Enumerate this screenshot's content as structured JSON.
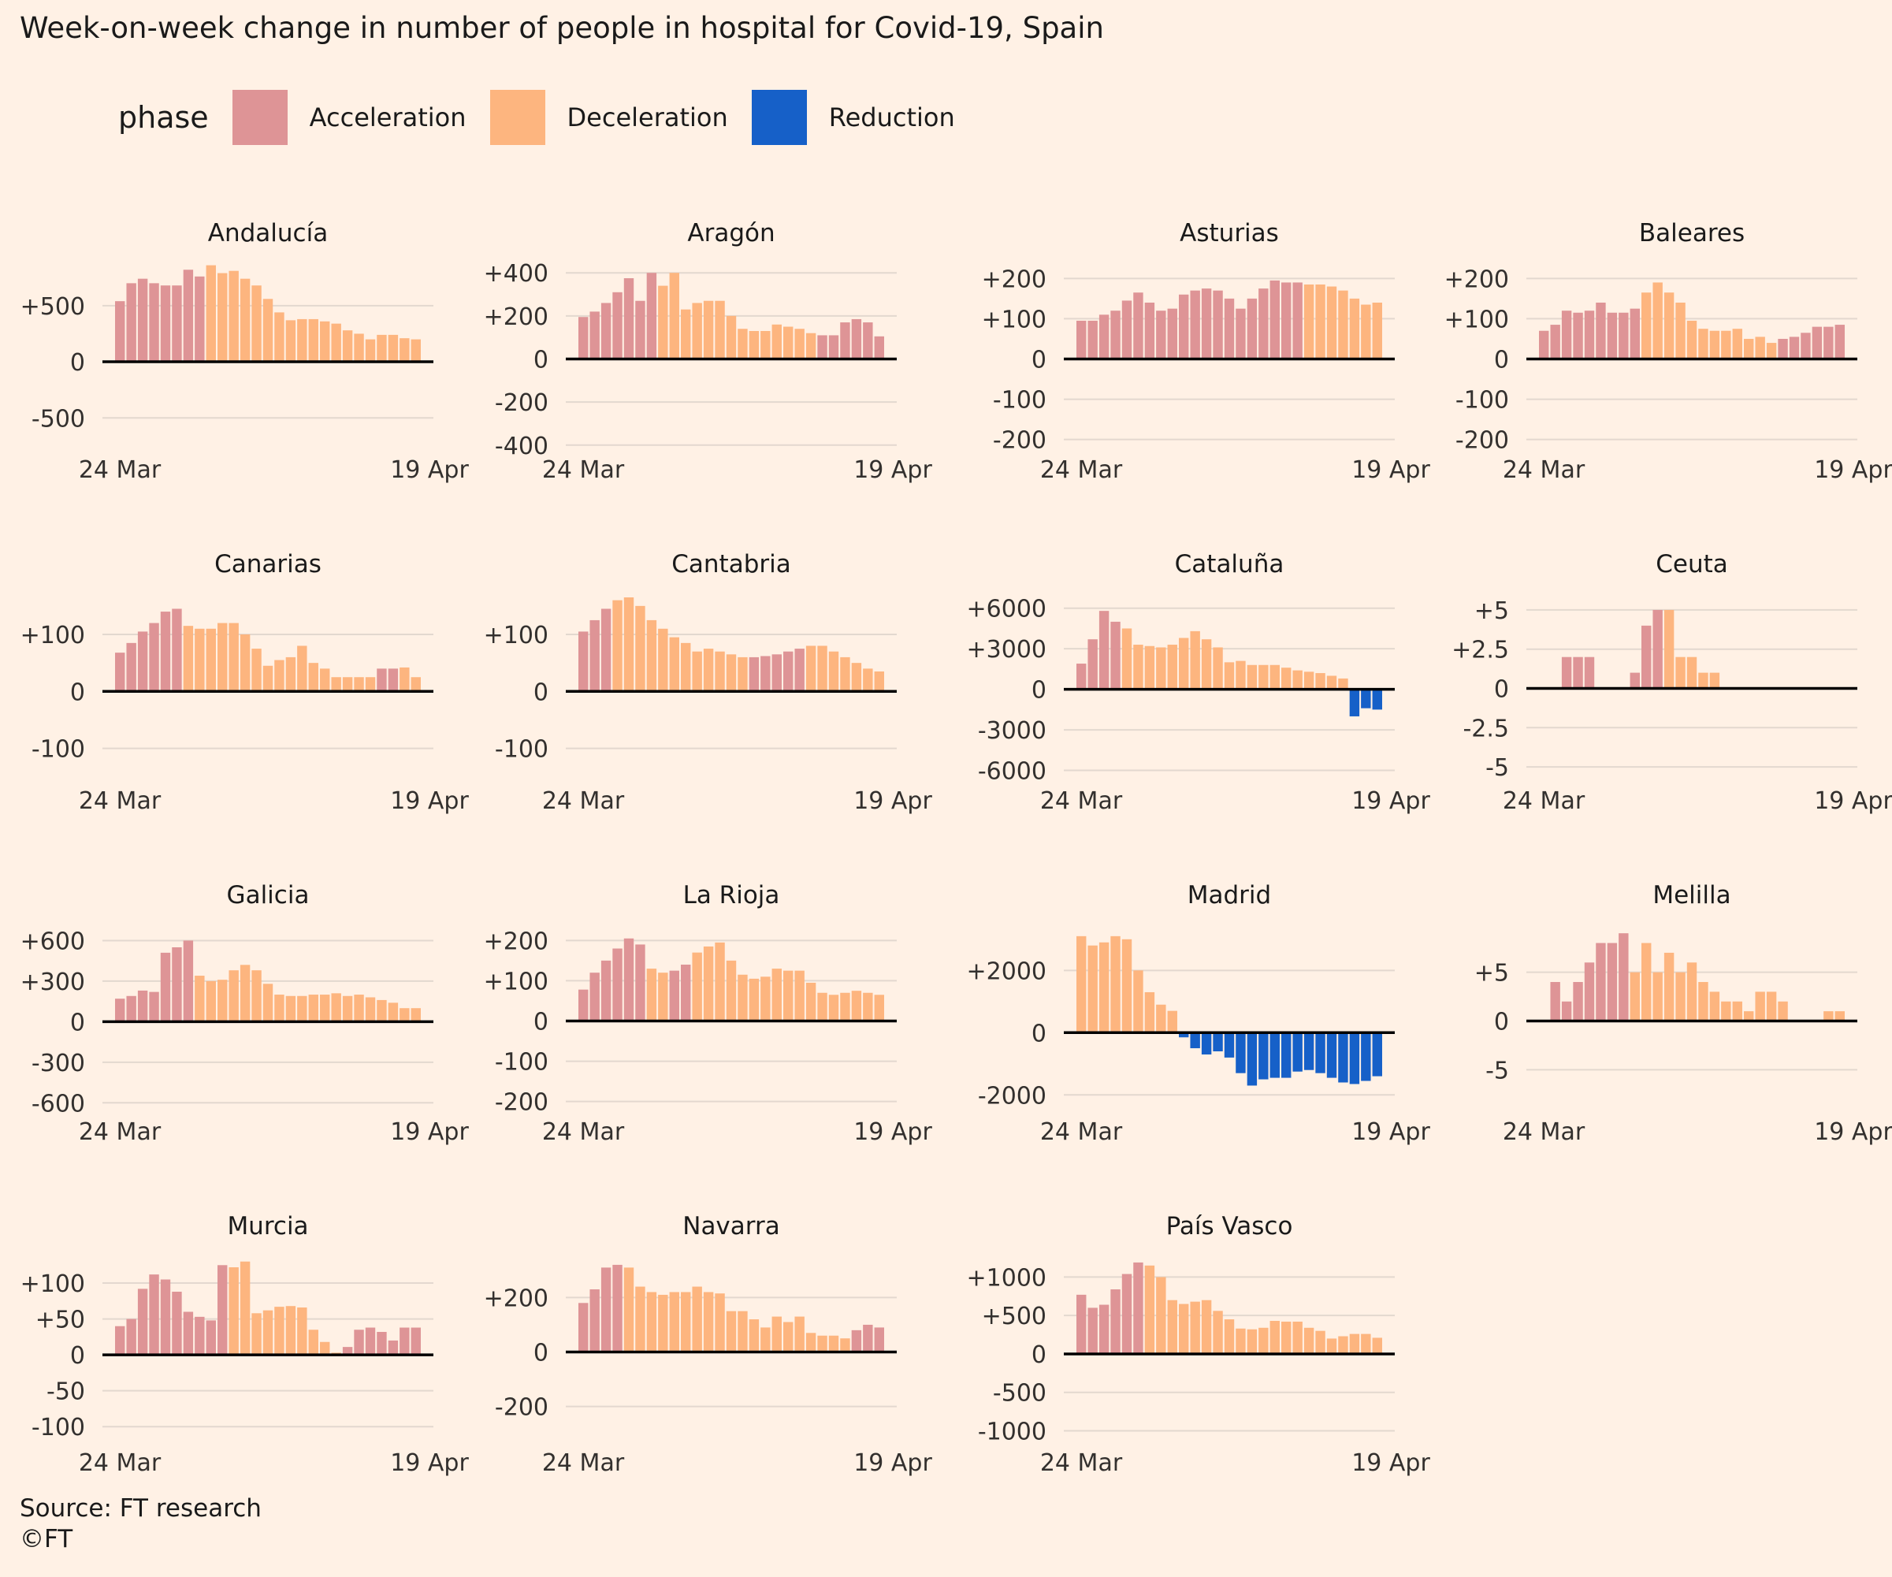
{
  "title": "Week-on-week change in number of people in hospital for Covid-19, Spain",
  "legend": {
    "title": "phase",
    "items": [
      {
        "label": "Acceleration",
        "color": "#de9496"
      },
      {
        "label": "Deceleration",
        "color": "#fdb57f"
      },
      {
        "label": "Reduction",
        "color": "#1660c8"
      }
    ]
  },
  "footer": {
    "source": "Source: FT research",
    "copyright": "©FT"
  },
  "chart_data": {
    "type": "bar",
    "x_range": [
      "24 Mar",
      "19 Apr"
    ],
    "x_tick_labels": [
      "24 Mar",
      "19 Apr"
    ],
    "grid": true,
    "legend_position": "top-left",
    "phase_codes": {
      "A": "Acceleration",
      "D": "Deceleration",
      "R": "Reduction"
    },
    "panels": [
      {
        "title": "Andalucía",
        "ylim": [
          -800,
          850
        ],
        "ticks": [
          -500,
          0,
          500
        ],
        "tick_labels": [
          "-500",
          "0",
          "+500"
        ],
        "values": [
          540,
          700,
          740,
          700,
          680,
          680,
          820,
          760,
          860,
          790,
          810,
          740,
          680,
          560,
          440,
          370,
          380,
          380,
          360,
          340,
          280,
          250,
          200,
          240,
          240,
          210,
          200
        ],
        "phases": [
          "A",
          "A",
          "A",
          "A",
          "A",
          "A",
          "A",
          "A",
          "D",
          "D",
          "D",
          "D",
          "D",
          "D",
          "D",
          "D",
          "D",
          "D",
          "D",
          "D",
          "D",
          "D",
          "D",
          "D",
          "D",
          "D",
          "D"
        ]
      },
      {
        "title": "Aragón",
        "ylim": [
          -430,
          430
        ],
        "ticks": [
          -400,
          -200,
          0,
          200,
          400
        ],
        "tick_labels": [
          "-400",
          "-200",
          "0",
          "+200",
          "+400"
        ],
        "values": [
          195,
          220,
          260,
          310,
          375,
          270,
          400,
          340,
          400,
          230,
          260,
          270,
          270,
          200,
          140,
          130,
          130,
          160,
          150,
          140,
          120,
          110,
          110,
          170,
          185,
          170,
          105
        ],
        "phases": [
          "A",
          "A",
          "A",
          "A",
          "A",
          "A",
          "A",
          "D",
          "D",
          "D",
          "D",
          "D",
          "D",
          "D",
          "D",
          "D",
          "D",
          "D",
          "D",
          "D",
          "D",
          "A",
          "A",
          "A",
          "A",
          "A",
          "A"
        ]
      },
      {
        "title": "Asturias",
        "ylim": [
          -230,
          230
        ],
        "ticks": [
          -200,
          -100,
          0,
          100,
          200
        ],
        "tick_labels": [
          "-200",
          "-100",
          "0",
          "+100",
          "+200"
        ],
        "values": [
          95,
          95,
          110,
          120,
          145,
          165,
          140,
          120,
          125,
          160,
          170,
          175,
          170,
          150,
          125,
          150,
          175,
          195,
          190,
          190,
          185,
          185,
          180,
          170,
          150,
          135,
          140
        ],
        "phases": [
          "A",
          "A",
          "A",
          "A",
          "A",
          "A",
          "A",
          "A",
          "A",
          "A",
          "A",
          "A",
          "A",
          "A",
          "A",
          "A",
          "A",
          "A",
          "A",
          "A",
          "D",
          "D",
          "D",
          "D",
          "D",
          "D",
          "D"
        ]
      },
      {
        "title": "Baleares",
        "ylim": [
          -230,
          230
        ],
        "ticks": [
          -200,
          -100,
          0,
          100,
          200
        ],
        "tick_labels": [
          "-200",
          "-100",
          "0",
          "+100",
          "+200"
        ],
        "values": [
          70,
          85,
          120,
          115,
          120,
          140,
          115,
          115,
          125,
          165,
          190,
          165,
          140,
          95,
          75,
          70,
          70,
          75,
          50,
          55,
          40,
          50,
          55,
          65,
          80,
          80,
          85
        ],
        "phases": [
          "A",
          "A",
          "A",
          "A",
          "A",
          "A",
          "A",
          "A",
          "A",
          "D",
          "D",
          "D",
          "D",
          "D",
          "D",
          "D",
          "D",
          "D",
          "D",
          "D",
          "D",
          "A",
          "A",
          "A",
          "A",
          "A",
          "A"
        ]
      },
      {
        "title": "Canarias",
        "ylim": [
          -160,
          165
        ],
        "ticks": [
          -100,
          0,
          100
        ],
        "tick_labels": [
          "-100",
          "0",
          "+100"
        ],
        "values": [
          68,
          85,
          105,
          120,
          140,
          145,
          115,
          110,
          110,
          120,
          120,
          100,
          75,
          45,
          55,
          60,
          80,
          50,
          40,
          25,
          25,
          25,
          25,
          40,
          40,
          42,
          25
        ],
        "phases": [
          "A",
          "A",
          "A",
          "A",
          "A",
          "A",
          "D",
          "D",
          "D",
          "D",
          "D",
          "D",
          "D",
          "D",
          "D",
          "D",
          "D",
          "D",
          "D",
          "D",
          "D",
          "D",
          "D",
          "A",
          "A",
          "D",
          "D"
        ]
      },
      {
        "title": "Cantabria",
        "ylim": [
          -160,
          165
        ],
        "ticks": [
          -100,
          0,
          100
        ],
        "tick_labels": [
          "-100",
          "0",
          "+100"
        ],
        "values": [
          105,
          125,
          145,
          160,
          165,
          150,
          125,
          110,
          95,
          85,
          70,
          75,
          70,
          65,
          60,
          60,
          62,
          65,
          70,
          75,
          80,
          80,
          70,
          60,
          50,
          40,
          35
        ],
        "phases": [
          "A",
          "A",
          "A",
          "D",
          "D",
          "D",
          "D",
          "D",
          "D",
          "D",
          "D",
          "D",
          "D",
          "D",
          "D",
          "A",
          "A",
          "A",
          "A",
          "A",
          "D",
          "D",
          "D",
          "D",
          "D",
          "D",
          "D"
        ]
      },
      {
        "title": "Cataluña",
        "ylim": [
          -6900,
          6800
        ],
        "ticks": [
          -6000,
          -3000,
          0,
          3000,
          6000
        ],
        "tick_labels": [
          "-6000",
          "-3000",
          "0",
          "+3000",
          "+6000"
        ],
        "values": [
          1900,
          3700,
          5800,
          5000,
          4500,
          3300,
          3200,
          3100,
          3300,
          3800,
          4300,
          3700,
          3100,
          2000,
          2100,
          1800,
          1800,
          1800,
          1600,
          1400,
          1300,
          1200,
          1000,
          800,
          -2000,
          -1400,
          -1500
        ],
        "phases": [
          "A",
          "A",
          "A",
          "A",
          "D",
          "D",
          "D",
          "D",
          "D",
          "D",
          "D",
          "D",
          "D",
          "D",
          "D",
          "D",
          "D",
          "D",
          "D",
          "D",
          "D",
          "D",
          "D",
          "D",
          "R",
          "R",
          "R"
        ]
      },
      {
        "title": "Ceuta",
        "ylim": [
          -6,
          5.8
        ],
        "ticks": [
          -5,
          -2.5,
          0,
          2.5,
          5
        ],
        "tick_labels": [
          "-5",
          "-2.5",
          "0",
          "+2.5",
          "+5"
        ],
        "values": [
          0,
          0,
          2,
          2,
          2,
          0,
          0,
          0,
          1,
          4,
          5,
          5,
          2,
          2,
          1,
          1,
          0,
          0,
          0,
          0,
          0,
          0,
          0,
          0,
          0,
          0,
          0
        ],
        "phases": [
          "A",
          "A",
          "A",
          "A",
          "A",
          "A",
          "A",
          "A",
          "A",
          "A",
          "A",
          "D",
          "D",
          "D",
          "D",
          "D",
          "D",
          "D",
          "D",
          "D",
          "D",
          "D",
          "D",
          "D",
          "D",
          "D",
          "D"
        ]
      },
      {
        "title": "Galicia",
        "ylim": [
          -680,
          690
        ],
        "ticks": [
          -600,
          -300,
          0,
          300,
          600
        ],
        "tick_labels": [
          "-600",
          "-300",
          "0",
          "+300",
          "+600"
        ],
        "values": [
          170,
          190,
          230,
          220,
          510,
          550,
          600,
          340,
          300,
          310,
          380,
          420,
          380,
          280,
          200,
          190,
          190,
          200,
          200,
          210,
          190,
          200,
          180,
          160,
          140,
          100,
          100
        ],
        "phases": [
          "A",
          "A",
          "A",
          "A",
          "A",
          "A",
          "A",
          "D",
          "D",
          "D",
          "D",
          "D",
          "D",
          "D",
          "D",
          "D",
          "D",
          "D",
          "D",
          "D",
          "D",
          "D",
          "D",
          "D",
          "D",
          "D",
          "D"
        ]
      },
      {
        "title": "La Rioja",
        "ylim": [
          -230,
          230
        ],
        "ticks": [
          -200,
          -100,
          0,
          100,
          200
        ],
        "tick_labels": [
          "-200",
          "-100",
          "0",
          "+100",
          "+200"
        ],
        "values": [
          78,
          120,
          150,
          180,
          205,
          190,
          130,
          120,
          125,
          140,
          170,
          185,
          195,
          150,
          115,
          105,
          110,
          130,
          125,
          125,
          95,
          70,
          65,
          70,
          75,
          70,
          65
        ],
        "phases": [
          "A",
          "A",
          "A",
          "A",
          "A",
          "A",
          "D",
          "D",
          "A",
          "A",
          "D",
          "D",
          "D",
          "D",
          "D",
          "D",
          "D",
          "D",
          "D",
          "D",
          "D",
          "D",
          "D",
          "D",
          "D",
          "D",
          "D"
        ]
      },
      {
        "title": "Madrid",
        "ylim": [
          -2600,
          3350
        ],
        "ticks": [
          -2000,
          0,
          2000
        ],
        "tick_labels": [
          "-2000",
          "0",
          "+2000"
        ],
        "values": [
          3100,
          2800,
          2900,
          3100,
          3000,
          2000,
          1300,
          900,
          700,
          -150,
          -500,
          -700,
          -600,
          -800,
          -1300,
          -1700,
          -1500,
          -1450,
          -1450,
          -1250,
          -1200,
          -1300,
          -1450,
          -1600,
          -1650,
          -1550,
          -1400
        ],
        "phases": [
          "D",
          "D",
          "D",
          "D",
          "D",
          "D",
          "D",
          "D",
          "D",
          "R",
          "R",
          "R",
          "R",
          "R",
          "R",
          "R",
          "R",
          "R",
          "R",
          "R",
          "R",
          "R",
          "R",
          "R",
          "R",
          "R",
          "R"
        ]
      },
      {
        "title": "Melilla",
        "ylim": [
          -9.5,
          9.5
        ],
        "ticks": [
          -5,
          0,
          5
        ],
        "tick_labels": [
          "-5",
          "0",
          "+5"
        ],
        "values": [
          0,
          4,
          2,
          4,
          6,
          8,
          8,
          9,
          5,
          8,
          5,
          7,
          5,
          6,
          4,
          3,
          2,
          2,
          1,
          3,
          3,
          2,
          0,
          0,
          0,
          1,
          1
        ],
        "phases": [
          "A",
          "A",
          "A",
          "A",
          "A",
          "A",
          "A",
          "A",
          "D",
          "D",
          "D",
          "D",
          "D",
          "D",
          "D",
          "D",
          "D",
          "D",
          "D",
          "D",
          "D",
          "D",
          "D",
          "D",
          "D",
          "D",
          "D"
        ]
      },
      {
        "title": "Murcia",
        "ylim": [
          -125,
          133
        ],
        "ticks": [
          -100,
          -50,
          0,
          50,
          100
        ],
        "tick_labels": [
          "-100",
          "-50",
          "0",
          "+50",
          "+100"
        ],
        "values": [
          40,
          50,
          92,
          112,
          105,
          88,
          60,
          53,
          48,
          125,
          122,
          130,
          58,
          62,
          67,
          68,
          66,
          35,
          18,
          3,
          11,
          35,
          38,
          32,
          20,
          38,
          38
        ],
        "phases": [
          "A",
          "A",
          "A",
          "A",
          "A",
          "A",
          "A",
          "A",
          "A",
          "A",
          "D",
          "D",
          "D",
          "D",
          "D",
          "D",
          "D",
          "D",
          "D",
          "D",
          "A",
          "A",
          "A",
          "A",
          "A",
          "A",
          "A"
        ]
      },
      {
        "title": "Navarra",
        "ylim": [
          -340,
          340
        ],
        "ticks": [
          -200,
          0,
          200
        ],
        "tick_labels": [
          "-200",
          "0",
          "+200"
        ],
        "values": [
          180,
          230,
          310,
          320,
          310,
          240,
          220,
          210,
          220,
          220,
          240,
          220,
          215,
          150,
          150,
          120,
          90,
          130,
          110,
          130,
          70,
          60,
          60,
          50,
          80,
          100,
          90
        ],
        "phases": [
          "A",
          "A",
          "A",
          "A",
          "D",
          "D",
          "D",
          "D",
          "D",
          "D",
          "D",
          "D",
          "D",
          "D",
          "D",
          "D",
          "D",
          "D",
          "D",
          "D",
          "D",
          "D",
          "D",
          "D",
          "A",
          "A",
          "A"
        ]
      },
      {
        "title": "País Vasco",
        "ylim": [
          -1180,
          1230
        ],
        "ticks": [
          -1000,
          -500,
          0,
          500,
          1000
        ],
        "tick_labels": [
          "-1000",
          "-500",
          "0",
          "+500",
          "+1000"
        ],
        "values": [
          770,
          600,
          640,
          840,
          1040,
          1190,
          1150,
          1000,
          700,
          650,
          680,
          700,
          560,
          450,
          330,
          320,
          340,
          430,
          420,
          420,
          340,
          300,
          200,
          230,
          260,
          260,
          210
        ],
        "phases": [
          "A",
          "A",
          "A",
          "A",
          "A",
          "A",
          "D",
          "D",
          "D",
          "D",
          "D",
          "D",
          "D",
          "D",
          "D",
          "D",
          "D",
          "D",
          "D",
          "D",
          "D",
          "D",
          "D",
          "D",
          "D",
          "D",
          "D"
        ]
      }
    ]
  }
}
